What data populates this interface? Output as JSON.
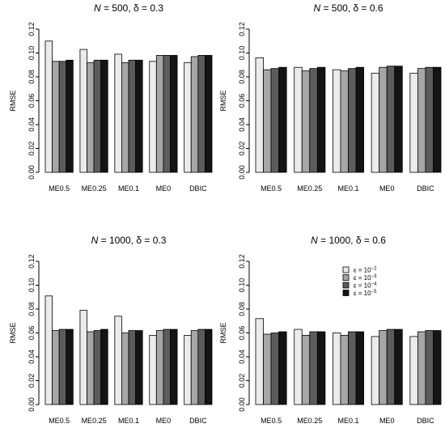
{
  "chart_data": [
    {
      "type": "bar",
      "title": "N = 500, δ = 0.3",
      "title_parts": {
        "n_label": "N",
        "n_value": " = 500, ",
        "d_label": "δ",
        "d_value": " = 0.3"
      },
      "ylabel": "RMSE",
      "ylim": [
        0,
        0.12
      ],
      "yticks": [
        "0.00",
        "0.02",
        "0.04",
        "0.06",
        "0.08",
        "0.10",
        "0.12"
      ],
      "categories": [
        "ME0.5",
        "ME0.25",
        "ME0.1",
        "ME0",
        "DBIC"
      ],
      "series": [
        {
          "values": [
            0.11,
            0.103,
            0.099,
            0.093,
            0.092
          ]
        },
        {
          "values": [
            0.093,
            0.092,
            0.092,
            0.098,
            0.097
          ]
        },
        {
          "values": [
            0.093,
            0.094,
            0.094,
            0.098,
            0.098
          ]
        },
        {
          "values": [
            0.094,
            0.094,
            0.094,
            0.098,
            0.098
          ]
        }
      ]
    },
    {
      "type": "bar",
      "title": "N = 500, δ = 0.6",
      "title_parts": {
        "n_label": "N",
        "n_value": " = 500, ",
        "d_label": "δ",
        "d_value": " = 0.6"
      },
      "ylabel": "RMSE",
      "ylim": [
        0,
        0.12
      ],
      "yticks": [
        "0.00",
        "0.02",
        "0.04",
        "0.06",
        "0.08",
        "0.10",
        "0.12"
      ],
      "categories": [
        "ME0.5",
        "ME0.25",
        "ME0.1",
        "ME0",
        "DBIC"
      ],
      "series": [
        {
          "values": [
            0.096,
            0.088,
            0.086,
            0.083,
            0.083
          ]
        },
        {
          "values": [
            0.086,
            0.085,
            0.085,
            0.088,
            0.087
          ]
        },
        {
          "values": [
            0.087,
            0.087,
            0.087,
            0.089,
            0.088
          ]
        },
        {
          "values": [
            0.088,
            0.088,
            0.088,
            0.089,
            0.088
          ]
        }
      ]
    },
    {
      "type": "bar",
      "title": "N = 1000, δ = 0.3",
      "title_parts": {
        "n_label": "N",
        "n_value": " = 1000, ",
        "d_label": "δ",
        "d_value": " = 0.3"
      },
      "ylabel": "RMSE",
      "ylim": [
        0,
        0.12
      ],
      "yticks": [
        "0.00",
        "0.02",
        "0.04",
        "0.06",
        "0.08",
        "0.10",
        "0.12"
      ],
      "categories": [
        "ME0.5",
        "ME0.25",
        "ME0.1",
        "ME0",
        "DBIC"
      ],
      "series": [
        {
          "values": [
            0.091,
            0.079,
            0.074,
            0.058,
            0.058
          ]
        },
        {
          "values": [
            0.062,
            0.061,
            0.06,
            0.062,
            0.062
          ]
        },
        {
          "values": [
            0.063,
            0.062,
            0.062,
            0.063,
            0.063
          ]
        },
        {
          "values": [
            0.063,
            0.063,
            0.062,
            0.063,
            0.063
          ]
        }
      ]
    },
    {
      "type": "bar",
      "title": "N = 1000, δ = 0.6",
      "title_parts": {
        "n_label": "N",
        "n_value": " = 1000, ",
        "d_label": "δ",
        "d_value": " = 0.6"
      },
      "ylabel": "RMSE",
      "ylim": [
        0,
        0.12
      ],
      "yticks": [
        "0.00",
        "0.02",
        "0.04",
        "0.06",
        "0.08",
        "0.10",
        "0.12"
      ],
      "categories": [
        "ME0.5",
        "ME0.25",
        "ME0.1",
        "ME0",
        "DBIC"
      ],
      "series": [
        {
          "values": [
            0.072,
            0.063,
            0.06,
            0.057,
            0.057
          ]
        },
        {
          "values": [
            0.059,
            0.058,
            0.058,
            0.062,
            0.061
          ]
        },
        {
          "values": [
            0.06,
            0.061,
            0.061,
            0.063,
            0.062
          ]
        },
        {
          "values": [
            0.061,
            0.061,
            0.061,
            0.063,
            0.062
          ]
        }
      ],
      "legend": {
        "placement": "top-right",
        "entries": [
          {
            "base": "ε = 10",
            "exp": "−2"
          },
          {
            "base": "ε = 10",
            "exp": "−3"
          },
          {
            "base": "ε = 10",
            "exp": "−4"
          },
          {
            "base": "ε = 10",
            "exp": "−5"
          }
        ]
      }
    }
  ],
  "colors": {
    "series": [
      "#ebebeb",
      "#a6a6a6",
      "#5c5c5c",
      "#141414"
    ],
    "stroke": "#000000"
  }
}
